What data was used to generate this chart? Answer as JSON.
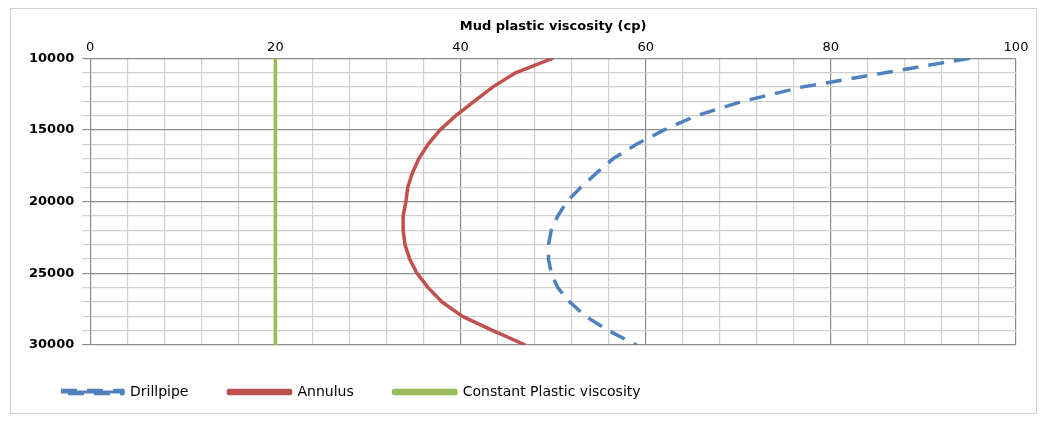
{
  "chart_data": {
    "type": "line",
    "xlabel": "Mud plastic viscosity (cp)",
    "xlim": [
      0,
      100
    ],
    "xticks": [
      0,
      {
        "value": 4,
        "label": null
      },
      {
        "value": 8,
        "label": null
      },
      {
        "value": 12,
        "label": null
      },
      {
        "value": 16,
        "label": null
      },
      20,
      {
        "value": 24,
        "label": null
      },
      {
        "value": 28,
        "label": null
      },
      {
        "value": 32,
        "label": null
      },
      {
        "value": 36,
        "label": null
      },
      40,
      {
        "value": 44,
        "label": null
      },
      {
        "value": 48,
        "label": null
      },
      {
        "value": 52,
        "label": null
      },
      {
        "value": 56,
        "label": null
      },
      60,
      {
        "value": 64,
        "label": null
      },
      {
        "value": 68,
        "label": null
      },
      {
        "value": 72,
        "label": null
      },
      {
        "value": 76,
        "label": null
      },
      80,
      {
        "value": 84,
        "label": null
      },
      {
        "value": 88,
        "label": null
      },
      {
        "value": 92,
        "label": null
      },
      {
        "value": 96,
        "label": null
      },
      100
    ],
    "ylim": [
      30000,
      10000
    ],
    "yticks": [
      10000,
      {
        "value": 11000,
        "label": null
      },
      {
        "value": 12000,
        "label": null
      },
      {
        "value": 13000,
        "label": null
      },
      {
        "value": 14000,
        "label": null
      },
      15000,
      {
        "value": 16000,
        "label": null
      },
      {
        "value": 17000,
        "label": null
      },
      {
        "value": 18000,
        "label": null
      },
      {
        "value": 19000,
        "label": null
      },
      20000,
      {
        "value": 21000,
        "label": null
      },
      {
        "value": 22000,
        "label": null
      },
      {
        "value": 23000,
        "label": null
      },
      {
        "value": 24000,
        "label": null
      },
      25000,
      {
        "value": 26000,
        "label": null
      },
      {
        "value": 27000,
        "label": null
      },
      {
        "value": 28000,
        "label": null
      },
      {
        "value": 29000,
        "label": null
      },
      30000
    ],
    "grid": true,
    "legend": "bottom",
    "marker": "none",
    "series": [
      {
        "name": "Drillpipe",
        "color": "#4f81bd",
        "line_style": "dashed",
        "x": [
          95,
          86,
          77,
          70.5,
          65.5,
          62,
          59,
          56.5,
          54.7,
          53,
          51.5,
          50.5,
          49.8,
          49.5,
          49.5,
          49.8,
          50.5,
          51.8,
          53.5,
          56,
          59
        ],
        "values": [
          10000,
          11000,
          12000,
          13000,
          14000,
          15000,
          16000,
          17000,
          18000,
          19000,
          20000,
          21000,
          22000,
          23000,
          24000,
          25000,
          26000,
          27000,
          28000,
          29000,
          30000
        ]
      },
      {
        "name": "Annulus",
        "color": "#c0504d",
        "line_style": "solid",
        "x": [
          50,
          46,
          43.5,
          41.5,
          39.5,
          37.8,
          36.5,
          35.5,
          34.8,
          34.3,
          34.1,
          33.8,
          33.8,
          34,
          34.5,
          35.3,
          36.5,
          38,
          40.2,
          43.5,
          47
        ],
        "values": [
          10000,
          11000,
          12000,
          13000,
          14000,
          15000,
          16000,
          17000,
          18000,
          19000,
          20000,
          21000,
          22000,
          23000,
          24000,
          25000,
          26000,
          27000,
          28000,
          29000,
          30000
        ]
      },
      {
        "name": "Constant Plastic viscosity",
        "color": "#9bbb59",
        "line_style": "solid",
        "x": [
          20,
          20
        ],
        "values": [
          10000,
          30000
        ]
      }
    ]
  }
}
